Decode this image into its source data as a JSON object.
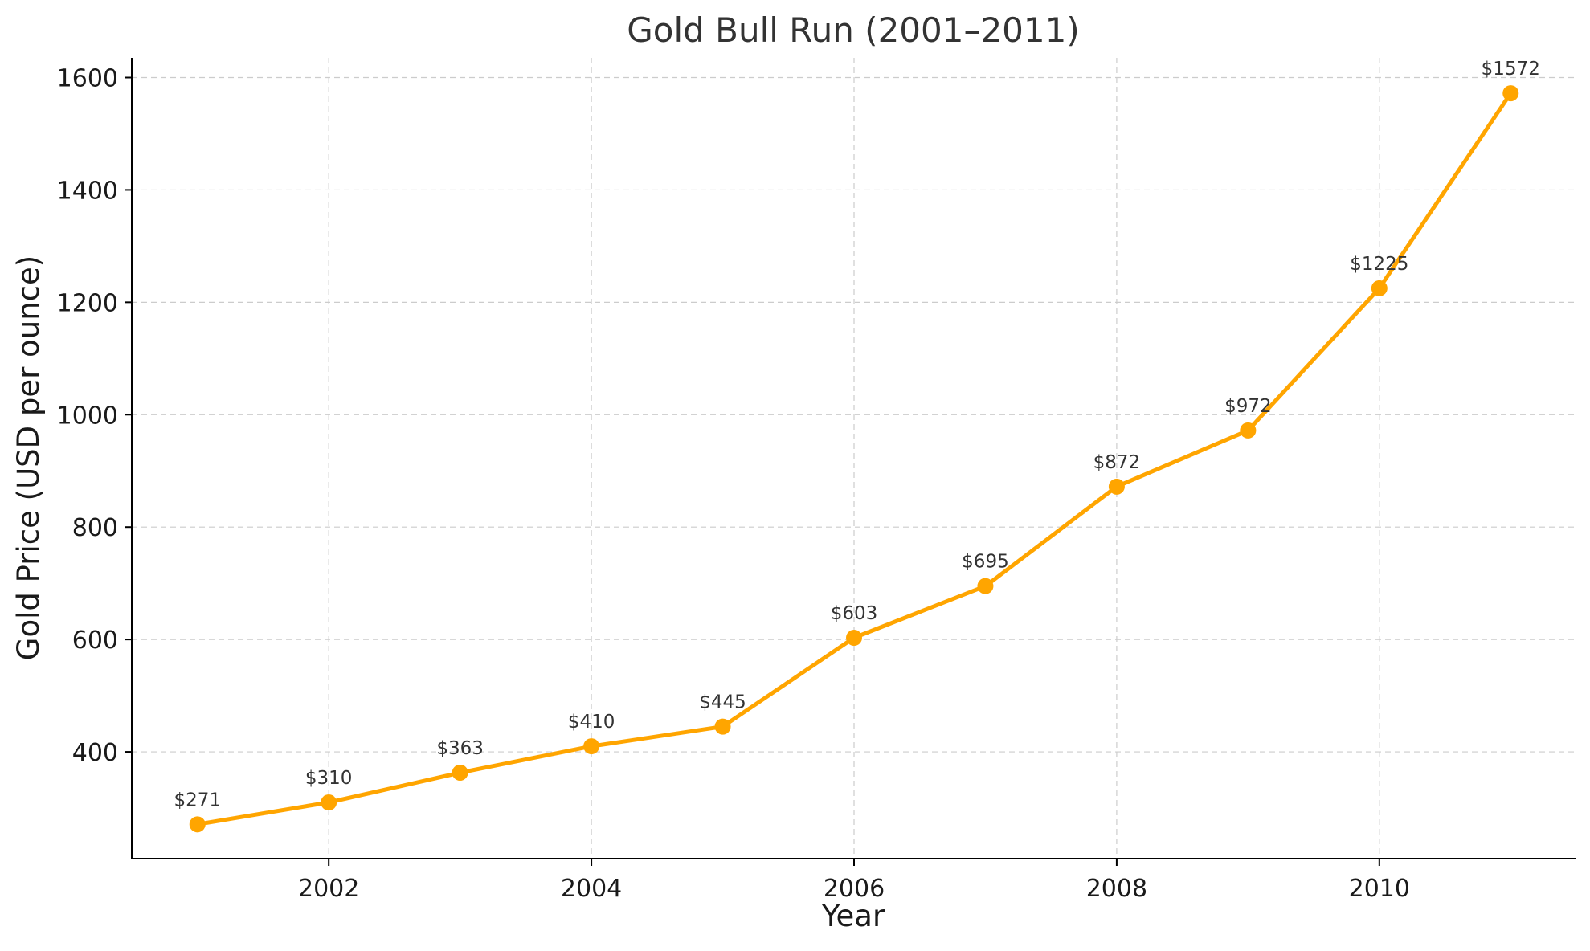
{
  "chart_data": {
    "type": "line",
    "title": "Gold Bull Run (2001–2011)",
    "xlabel": "Year",
    "ylabel": "Gold Price (USD per ounce)",
    "x": [
      2001,
      2002,
      2003,
      2004,
      2005,
      2006,
      2007,
      2008,
      2009,
      2010,
      2011
    ],
    "series": [
      {
        "values": [
          271,
          310,
          363,
          410,
          445,
          603,
          695,
          872,
          972,
          1225,
          1572
        ],
        "data_labels": [
          "$271",
          "$310",
          "$363",
          "$410",
          "$445",
          "$603",
          "$695",
          "$872",
          "$972",
          "$1225",
          "$1572"
        ],
        "color": "#FFA500",
        "marker": "circle"
      }
    ],
    "xlim": [
      2000.5,
      2011.5
    ],
    "ylim": [
      210,
      1635
    ],
    "xticks": [
      2002,
      2004,
      2006,
      2008,
      2010
    ],
    "xtick_labels": [
      "2002",
      "2004",
      "2006",
      "2008",
      "2010"
    ],
    "yticks": [
      400,
      600,
      800,
      1000,
      1200,
      1400,
      1600
    ],
    "ytick_labels": [
      "400",
      "600",
      "800",
      "1000",
      "1200",
      "1400",
      "1600"
    ],
    "grid": true,
    "legend": "none"
  }
}
